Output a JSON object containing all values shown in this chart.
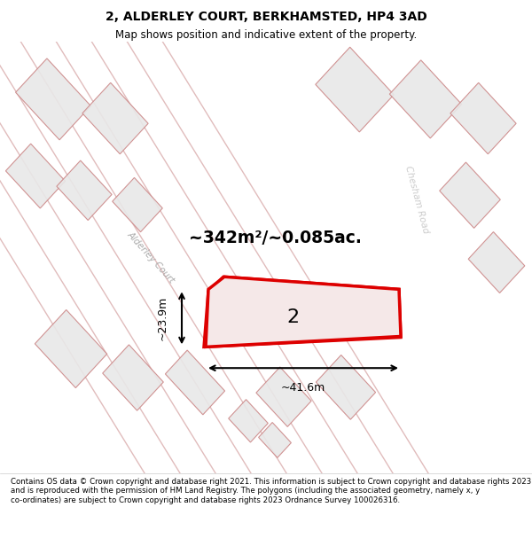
{
  "title_line1": "2, ALDERLEY COURT, BERKHAMSTED, HP4 3AD",
  "title_line2": "Map shows position and indicative extent of the property.",
  "area_text": "~342m²/~0.085ac.",
  "dim_width": "~41.6m",
  "dim_height": "~23.9m",
  "plot_label": "2",
  "road_label1": "Alderley Court",
  "road_label2": "Alderley Court",
  "road_label3": "Chesham Road",
  "footer_text": "Contains OS data © Crown copyright and database right 2021. This information is subject to Crown copyright and database rights 2023 and is reproduced with the permission of HM Land Registry. The polygons (including the associated geometry, namely x, y co-ordinates) are subject to Crown copyright and database rights 2023 Ordnance Survey 100026316.",
  "bg_color": "#f8f8f8",
  "map_bg": "#ffffff",
  "plot_fill": "#ffffff",
  "plot_edge": "#e8e8e8",
  "highlight_color": "#e8c8c8",
  "red_color": "#dd0000",
  "road_color": "#d4a0a0",
  "building_fill": "#e8e8e8",
  "building_edge": "#cc8888"
}
